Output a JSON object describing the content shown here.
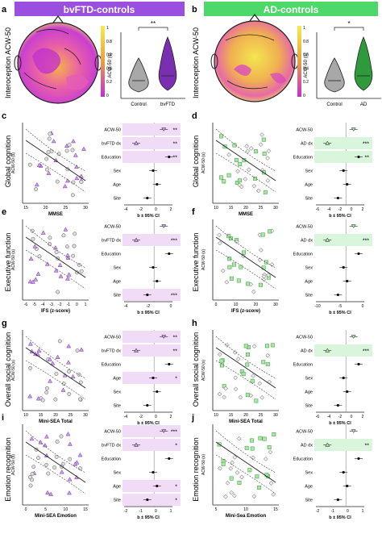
{
  "figure": {
    "left_header": "bvFTD-controls",
    "right_header": "AD-controls",
    "colors": {
      "bv_header": "#9b4fe0",
      "ad_header": "#4cd96a",
      "bv_light": "#f1dcf7",
      "ad_light": "#d9f5dc",
      "bv_mark": "#7a2fb0",
      "ad_mark": "#2e9a3c",
      "control": "#888888"
    }
  },
  "panels": {
    "a": {
      "letter": "a",
      "ylabel": "Interoception ACW-50",
      "violin_ylabel": "ACW-50 (s)",
      "groups": [
        "Control",
        "bvFTD"
      ],
      "sig": "**",
      "scale_ticks": [
        "1",
        "0.8",
        "0.6",
        "0.4",
        "0.2",
        "0"
      ]
    },
    "b": {
      "letter": "b",
      "ylabel": "Interoception ACW-50",
      "violin_ylabel": "ACW-50 (s)",
      "groups": [
        "Control",
        "AD"
      ],
      "sig": "*",
      "scale_ticks": [
        "1",
        "0.8",
        "0.6",
        "0.4",
        "0.2",
        "0"
      ]
    },
    "c": {
      "letter": "c",
      "ylabel": "Global cognition",
      "xlabel": "MMSE",
      "scatter_ylabel": "ACW-50 (s)",
      "xticks": [
        "15",
        "20",
        "25",
        "30"
      ],
      "forest": {
        "rows": [
          {
            "label": "ACW-50",
            "sig": "**"
          },
          {
            "label": "bvFTD dx",
            "sig": "**"
          },
          {
            "label": "Education",
            "sig": "**"
          },
          {
            "label": "Sex",
            "sig": ""
          },
          {
            "label": "Age",
            "sig": ""
          },
          {
            "label": "Site",
            "sig": ""
          }
        ],
        "xticks": [
          "-4",
          "-2",
          "0",
          "2"
        ],
        "xlabel": "b ± 95% CI"
      }
    },
    "d": {
      "letter": "d",
      "ylabel": "Global cognition",
      "xlabel": "MMSE",
      "scatter_ylabel": "ACW-50 (s)",
      "xticks": [
        "10",
        "15",
        "20",
        "25",
        "30"
      ],
      "forest": {
        "rows": [
          {
            "label": "ACW-50",
            "sig": ""
          },
          {
            "label": "AD dx",
            "sig": "***"
          },
          {
            "label": "Education",
            "sig": "**"
          },
          {
            "label": "Sex",
            "sig": ""
          },
          {
            "label": "Age",
            "sig": ""
          },
          {
            "label": "Site",
            "sig": ""
          }
        ],
        "xticks": [
          "-6",
          "-4",
          "-2",
          "0",
          "2"
        ],
        "xlabel": "b ± 95% CI"
      }
    },
    "e": {
      "letter": "e",
      "ylabel": "Executive function",
      "xlabel": "IFS (z-score)",
      "scatter_ylabel": "ACW-50 (s)",
      "xticks": [
        "-6",
        "-5",
        "-4",
        "-3",
        "-2",
        "-1",
        "0",
        "1"
      ],
      "forest": {
        "rows": [
          {
            "label": "ACW-50",
            "sig": ""
          },
          {
            "label": "bvFTD dx",
            "sig": "***"
          },
          {
            "label": "Education",
            "sig": ""
          },
          {
            "label": "Sex",
            "sig": ""
          },
          {
            "label": "Age",
            "sig": ""
          },
          {
            "label": "Site",
            "sig": "***"
          }
        ],
        "xticks": [
          "-4",
          "-2",
          "0"
        ],
        "xlabel": "b ± 95% CI"
      }
    },
    "f": {
      "letter": "f",
      "ylabel": "Executive function",
      "xlabel": "IFS (z-score)",
      "scatter_ylabel": "ACW-50 (s)",
      "xticks": [
        "0",
        "10",
        "20",
        "30"
      ],
      "forest": {
        "rows": [
          {
            "label": "ACW-50",
            "sig": ""
          },
          {
            "label": "AD dx",
            "sig": "***"
          },
          {
            "label": "Education",
            "sig": ""
          },
          {
            "label": "Sex",
            "sig": ""
          },
          {
            "label": "Age",
            "sig": ""
          },
          {
            "label": "Site",
            "sig": ""
          }
        ],
        "xticks": [
          "-10",
          "-5",
          "0"
        ],
        "xlabel": "b ± 95% CI"
      }
    },
    "g": {
      "letter": "g",
      "ylabel": "Overall social cognition",
      "xlabel": "Mini-SEA Total",
      "scatter_ylabel": "ACW-50 (s)",
      "xticks": [
        "10",
        "15",
        "20",
        "25",
        "30"
      ],
      "forest": {
        "rows": [
          {
            "label": "ACW-50",
            "sig": "**"
          },
          {
            "label": "bvFTD dx",
            "sig": "**"
          },
          {
            "label": "Education",
            "sig": ""
          },
          {
            "label": "Age",
            "sig": "*"
          },
          {
            "label": "Sex",
            "sig": ""
          },
          {
            "label": "Site",
            "sig": ""
          }
        ],
        "xticks": [
          "-4",
          "-2",
          "0",
          "2"
        ],
        "xlabel": "b ± 95% CI"
      }
    },
    "h": {
      "letter": "h",
      "ylabel": "Overall social cognition",
      "xlabel": "Mini-SEA Total",
      "scatter_ylabel": "ACW-50 (s)",
      "xticks": [
        "10",
        "15",
        "20",
        "25",
        "30"
      ],
      "forest": {
        "rows": [
          {
            "label": "ACW-50",
            "sig": ""
          },
          {
            "label": "AD dx",
            "sig": "***"
          },
          {
            "label": "Education",
            "sig": ""
          },
          {
            "label": "Sex",
            "sig": ""
          },
          {
            "label": "Age",
            "sig": ""
          },
          {
            "label": "Site",
            "sig": ""
          }
        ],
        "xticks": [
          "-6",
          "-4",
          "-2",
          "0",
          "2"
        ],
        "xlabel": "b ± 95% CI"
      }
    },
    "i": {
      "letter": "i",
      "ylabel": "Emotion recognition",
      "xlabel": "Mini-SEA Emotion",
      "scatter_ylabel": "ACW-50 (s)",
      "xticks": [
        "0",
        "5",
        "10",
        "15"
      ],
      "forest": {
        "rows": [
          {
            "label": "ACW-50",
            "sig": "***"
          },
          {
            "label": "bvFTD dx",
            "sig": "*"
          },
          {
            "label": "Education",
            "sig": ""
          },
          {
            "label": "Sex",
            "sig": ""
          },
          {
            "label": "Age",
            "sig": "*"
          },
          {
            "label": "Site",
            "sig": "*"
          }
        ],
        "xticks": [
          "-2",
          "-1",
          "0",
          "1"
        ],
        "xlabel": "b ± 95% CI"
      }
    },
    "j": {
      "letter": "j",
      "ylabel": "Emotion recognition",
      "xlabel": "Mini-Sea Emotion",
      "scatter_ylabel": "ACW-50 (s)",
      "xticks": [
        "5",
        "10",
        "15"
      ],
      "forest": {
        "rows": [
          {
            "label": "ACW-50",
            "sig": ""
          },
          {
            "label": "AD dx",
            "sig": "**"
          },
          {
            "label": "Education",
            "sig": ""
          },
          {
            "label": "Sex",
            "sig": ""
          },
          {
            "label": "Age",
            "sig": ""
          },
          {
            "label": "Site",
            "sig": ""
          }
        ],
        "xticks": [
          "-2",
          "-1",
          "0",
          "1"
        ],
        "xlabel": "b ± 95% CI"
      }
    }
  }
}
